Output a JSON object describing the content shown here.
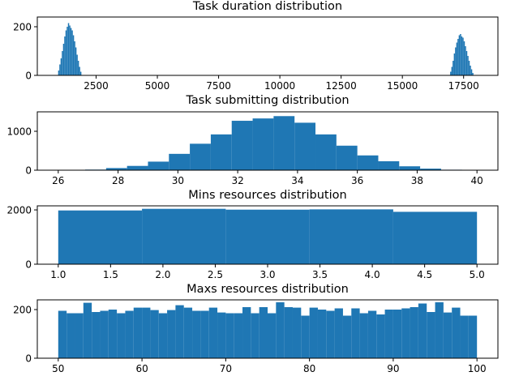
{
  "chart_data": [
    {
      "type": "histogram",
      "title": "Task duration distribution",
      "xlabel": "",
      "ylabel": "",
      "xlim": [
        100,
        18900
      ],
      "ylim": [
        0,
        240
      ],
      "xticks": [
        2500,
        5000,
        7500,
        10000,
        12500,
        15000,
        17500
      ],
      "xtick_labels": [
        "2500",
        "5000",
        "7500",
        "10000",
        "12500",
        "15000",
        "17500"
      ],
      "yticks": [
        0,
        200
      ],
      "ytick_labels": [
        "0",
        "200"
      ],
      "bars": [
        {
          "x0": 950,
          "x1": 1000,
          "y": 20
        },
        {
          "x0": 1000,
          "x1": 1050,
          "y": 45
        },
        {
          "x0": 1050,
          "x1": 1100,
          "y": 70
        },
        {
          "x0": 1100,
          "x1": 1150,
          "y": 100
        },
        {
          "x0": 1150,
          "x1": 1200,
          "y": 130
        },
        {
          "x0": 1200,
          "x1": 1250,
          "y": 160
        },
        {
          "x0": 1250,
          "x1": 1300,
          "y": 185
        },
        {
          "x0": 1300,
          "x1": 1350,
          "y": 200
        },
        {
          "x0": 1350,
          "x1": 1400,
          "y": 215
        },
        {
          "x0": 1400,
          "x1": 1450,
          "y": 205
        },
        {
          "x0": 1450,
          "x1": 1500,
          "y": 195
        },
        {
          "x0": 1500,
          "x1": 1550,
          "y": 185
        },
        {
          "x0": 1550,
          "x1": 1600,
          "y": 165
        },
        {
          "x0": 1600,
          "x1": 1650,
          "y": 140
        },
        {
          "x0": 1650,
          "x1": 1700,
          "y": 115
        },
        {
          "x0": 1700,
          "x1": 1750,
          "y": 85
        },
        {
          "x0": 1750,
          "x1": 1800,
          "y": 60
        },
        {
          "x0": 1800,
          "x1": 1850,
          "y": 35
        },
        {
          "x0": 1850,
          "x1": 1900,
          "y": 15
        },
        {
          "x0": 16950,
          "x1": 17000,
          "y": 15
        },
        {
          "x0": 17000,
          "x1": 17050,
          "y": 35
        },
        {
          "x0": 17050,
          "x1": 17100,
          "y": 60
        },
        {
          "x0": 17100,
          "x1": 17150,
          "y": 90
        },
        {
          "x0": 17150,
          "x1": 17200,
          "y": 115
        },
        {
          "x0": 17200,
          "x1": 17250,
          "y": 135
        },
        {
          "x0": 17250,
          "x1": 17300,
          "y": 150
        },
        {
          "x0": 17300,
          "x1": 17350,
          "y": 165
        },
        {
          "x0": 17350,
          "x1": 17400,
          "y": 170
        },
        {
          "x0": 17400,
          "x1": 17450,
          "y": 160
        },
        {
          "x0": 17450,
          "x1": 17500,
          "y": 155
        },
        {
          "x0": 17500,
          "x1": 17550,
          "y": 140
        },
        {
          "x0": 17550,
          "x1": 17600,
          "y": 120
        },
        {
          "x0": 17600,
          "x1": 17650,
          "y": 100
        },
        {
          "x0": 17650,
          "x1": 17700,
          "y": 80
        },
        {
          "x0": 17700,
          "x1": 17750,
          "y": 60
        },
        {
          "x0": 17750,
          "x1": 17800,
          "y": 40
        },
        {
          "x0": 17800,
          "x1": 17850,
          "y": 25
        },
        {
          "x0": 17850,
          "x1": 17900,
          "y": 10
        }
      ]
    },
    {
      "type": "histogram",
      "title": "Task submitting distribution",
      "xlabel": "",
      "ylabel": "",
      "xlim": [
        25.3,
        40.7
      ],
      "ylim": [
        0,
        1500
      ],
      "xticks": [
        26,
        28,
        30,
        32,
        34,
        36,
        38,
        40
      ],
      "xtick_labels": [
        "26",
        "28",
        "30",
        "32",
        "34",
        "36",
        "38",
        "40"
      ],
      "yticks": [
        0,
        1000
      ],
      "ytick_labels": [
        "0",
        "1000"
      ],
      "bars": [
        {
          "x0": 26.2,
          "x1": 26.9,
          "y": 3
        },
        {
          "x0": 26.9,
          "x1": 27.6,
          "y": 15
        },
        {
          "x0": 27.6,
          "x1": 28.3,
          "y": 55
        },
        {
          "x0": 28.3,
          "x1": 29.0,
          "y": 110
        },
        {
          "x0": 29.0,
          "x1": 29.7,
          "y": 220
        },
        {
          "x0": 29.7,
          "x1": 30.4,
          "y": 420
        },
        {
          "x0": 30.4,
          "x1": 31.1,
          "y": 680
        },
        {
          "x0": 31.1,
          "x1": 31.8,
          "y": 920
        },
        {
          "x0": 31.8,
          "x1": 32.5,
          "y": 1270
        },
        {
          "x0": 32.5,
          "x1": 33.2,
          "y": 1330
        },
        {
          "x0": 33.2,
          "x1": 33.9,
          "y": 1390
        },
        {
          "x0": 33.9,
          "x1": 34.6,
          "y": 1220
        },
        {
          "x0": 34.6,
          "x1": 35.3,
          "y": 920
        },
        {
          "x0": 35.3,
          "x1": 36.0,
          "y": 630
        },
        {
          "x0": 36.0,
          "x1": 36.7,
          "y": 380
        },
        {
          "x0": 36.7,
          "x1": 37.4,
          "y": 230
        },
        {
          "x0": 37.4,
          "x1": 38.1,
          "y": 100
        },
        {
          "x0": 38.1,
          "x1": 38.8,
          "y": 40
        },
        {
          "x0": 38.8,
          "x1": 39.5,
          "y": 12
        },
        {
          "x0": 39.5,
          "x1": 40.0,
          "y": 3
        }
      ]
    },
    {
      "type": "histogram",
      "title": "Mins resources distribution",
      "xlabel": "",
      "ylabel": "",
      "xlim": [
        0.8,
        5.2
      ],
      "ylim": [
        0,
        2150
      ],
      "xticks": [
        1.0,
        1.5,
        2.0,
        2.5,
        3.0,
        3.5,
        4.0,
        4.5,
        5.0
      ],
      "xtick_labels": [
        "1.0",
        "1.5",
        "2.0",
        "2.5",
        "3.0",
        "3.5",
        "4.0",
        "4.5",
        "5.0"
      ],
      "yticks": [
        0,
        2000
      ],
      "ytick_labels": [
        "0",
        "2000"
      ],
      "bars": [
        {
          "x0": 1.0,
          "x1": 1.8,
          "y": 1980
        },
        {
          "x0": 1.8,
          "x1": 2.6,
          "y": 2040
        },
        {
          "x0": 2.6,
          "x1": 3.4,
          "y": 2010
        },
        {
          "x0": 3.4,
          "x1": 4.2,
          "y": 2020
        },
        {
          "x0": 4.2,
          "x1": 5.0,
          "y": 1930
        }
      ]
    },
    {
      "type": "histogram",
      "title": "Maxs resources distribution",
      "xlabel": "",
      "ylabel": "",
      "xlim": [
        47.5,
        102.5
      ],
      "ylim": [
        0,
        240
      ],
      "xticks": [
        50,
        60,
        70,
        80,
        90,
        100
      ],
      "xtick_labels": [
        "50",
        "60",
        "70",
        "80",
        "90",
        "100"
      ],
      "yticks": [
        0,
        200
      ],
      "ytick_labels": [
        "0",
        "200"
      ],
      "bin_start": 50,
      "bin_width": 1,
      "values": [
        195,
        185,
        185,
        228,
        190,
        195,
        200,
        185,
        195,
        208,
        208,
        198,
        185,
        198,
        218,
        208,
        195,
        195,
        208,
        188,
        185,
        185,
        210,
        185,
        210,
        185,
        230,
        210,
        208,
        175,
        208,
        200,
        195,
        205,
        175,
        205,
        185,
        195,
        180,
        200,
        200,
        205,
        210,
        225,
        190,
        230,
        188,
        208,
        175,
        175
      ]
    }
  ]
}
